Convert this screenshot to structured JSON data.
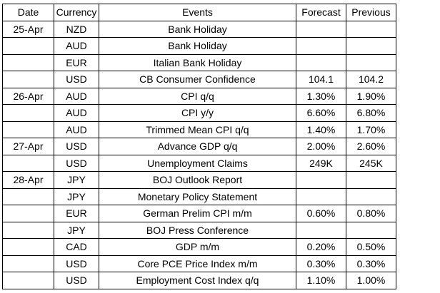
{
  "table": {
    "headers": {
      "date": "Date",
      "currency": "Currency",
      "events": "Events",
      "forecast": "Forecast",
      "previous": "Previous"
    },
    "rows": [
      {
        "date": "25-Apr",
        "currency": "NZD",
        "event": "Bank Holiday",
        "forecast": "",
        "previous": ""
      },
      {
        "date": "",
        "currency": "AUD",
        "event": "Bank Holiday",
        "forecast": "",
        "previous": ""
      },
      {
        "date": "",
        "currency": "EUR",
        "event": "Italian Bank Holiday",
        "forecast": "",
        "previous": ""
      },
      {
        "date": "",
        "currency": "USD",
        "event": "CB Consumer Confidence",
        "forecast": "104.1",
        "previous": "104.2"
      },
      {
        "date": "26-Apr",
        "currency": "AUD",
        "event": "CPI q/q",
        "forecast": "1.30%",
        "previous": "1.90%"
      },
      {
        "date": "",
        "currency": "AUD",
        "event": "CPI y/y",
        "forecast": "6.60%",
        "previous": "6.80%"
      },
      {
        "date": "",
        "currency": "AUD",
        "event": "Trimmed Mean CPI q/q",
        "forecast": "1.40%",
        "previous": "1.70%"
      },
      {
        "date": "27-Apr",
        "currency": "USD",
        "event": "Advance GDP q/q",
        "forecast": "2.00%",
        "previous": "2.60%"
      },
      {
        "date": "",
        "currency": "USD",
        "event": "Unemployment Claims",
        "forecast": "249K",
        "previous": "245K"
      },
      {
        "date": "28-Apr",
        "currency": "JPY",
        "event": "BOJ Outlook Report",
        "forecast": "",
        "previous": ""
      },
      {
        "date": "",
        "currency": "JPY",
        "event": "Monetary Policy Statement",
        "forecast": "",
        "previous": ""
      },
      {
        "date": "",
        "currency": "EUR",
        "event": "German Prelim CPI m/m",
        "forecast": "0.60%",
        "previous": "0.80%"
      },
      {
        "date": "",
        "currency": "JPY",
        "event": "BOJ Press Conference",
        "forecast": "",
        "previous": ""
      },
      {
        "date": "",
        "currency": "CAD",
        "event": "GDP m/m",
        "forecast": "0.20%",
        "previous": "0.50%"
      },
      {
        "date": "",
        "currency": "USD",
        "event": "Core PCE Price Index m/m",
        "forecast": "0.30%",
        "previous": "0.30%"
      },
      {
        "date": "",
        "currency": "USD",
        "event": "Employment Cost Index q/q",
        "forecast": "1.10%",
        "previous": "1.00%"
      }
    ]
  }
}
